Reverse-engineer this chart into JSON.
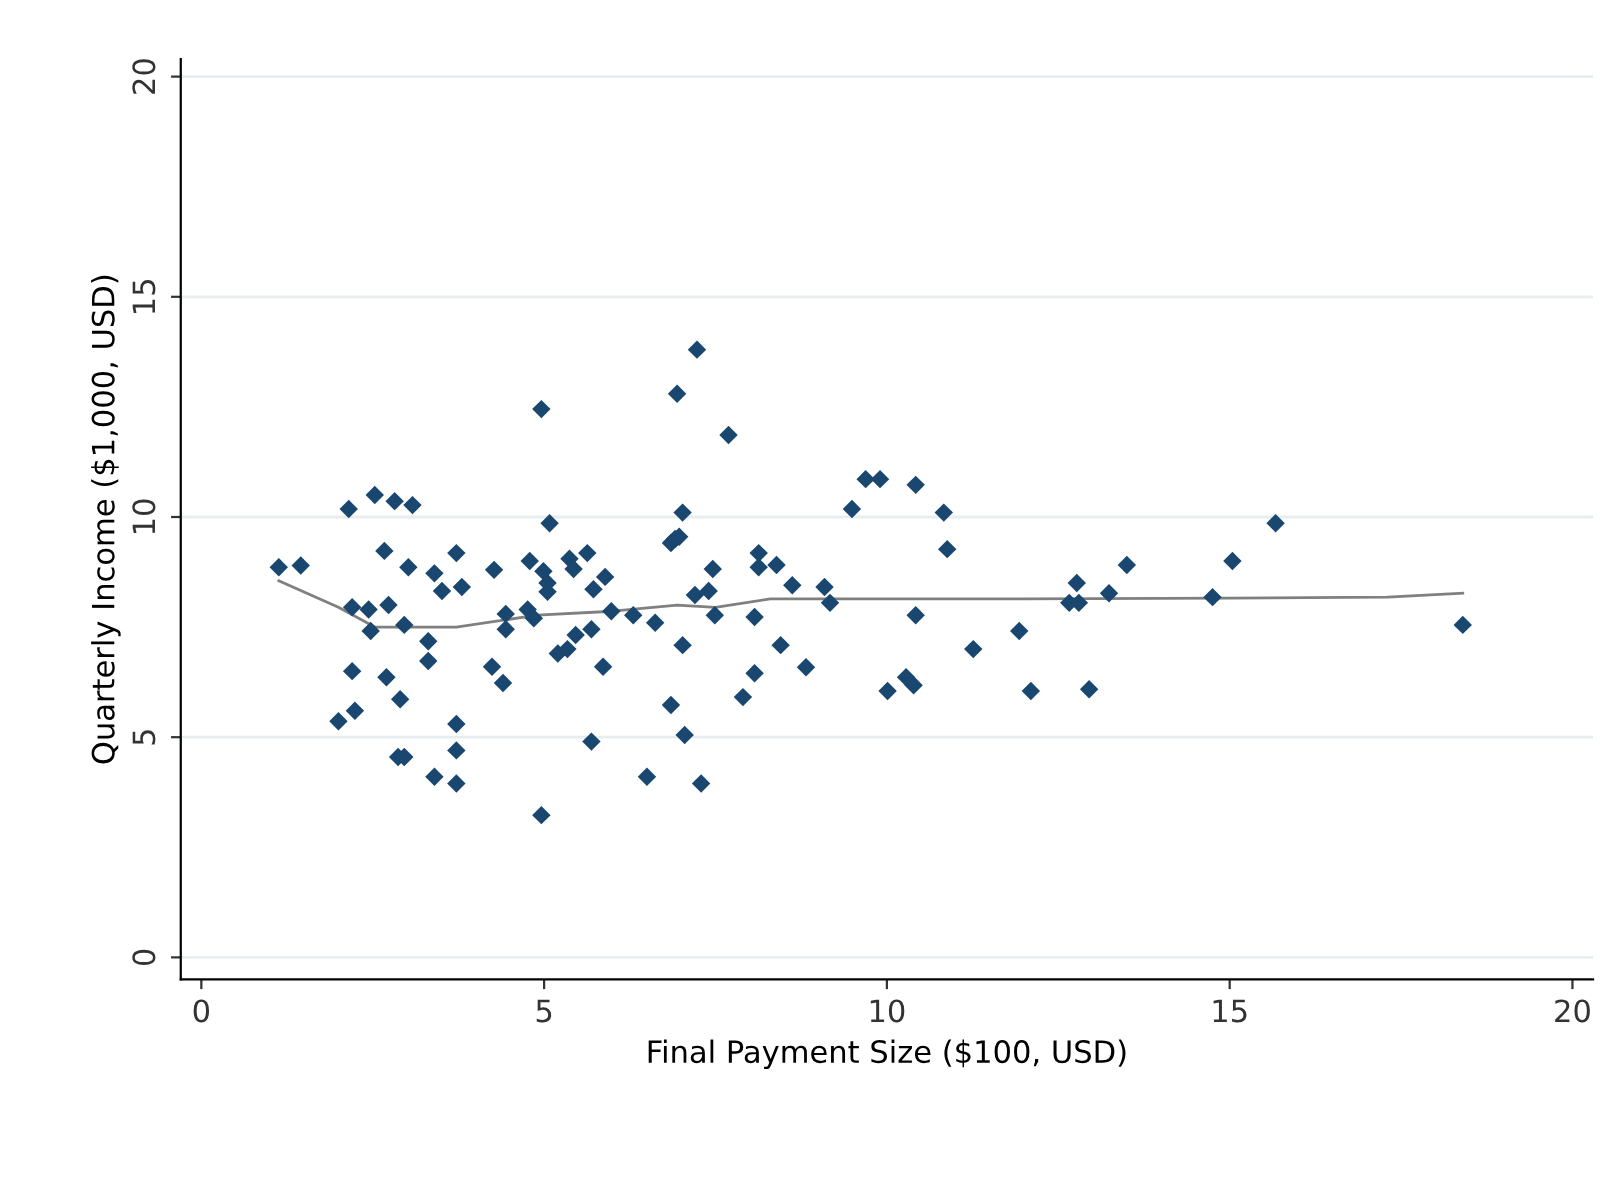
{
  "chart_data": {
    "type": "scatter",
    "xlabel": "Final Payment Size ($100, USD)",
    "ylabel": "Quarterly Income ($1,000, USD)",
    "xlim": [
      -0.3,
      20.3
    ],
    "ylim": [
      -0.5,
      20.4
    ],
    "xticks": [
      0,
      5,
      10,
      15,
      20
    ],
    "yticks": [
      0,
      5,
      10,
      15,
      20
    ],
    "grid": "y",
    "marker": "diamond",
    "series": [
      {
        "color": "#1a476f",
        "x": [
          1.13,
          1.45,
          2.0,
          2.24,
          2.15,
          2.53,
          2.82,
          3.08,
          2.67,
          3.02,
          2.2,
          2.44,
          2.73,
          2.47,
          2.96,
          2.2,
          2.7,
          2.9,
          2.87,
          2.96,
          3.4,
          3.72,
          3.72,
          3.72,
          3.31,
          3.31,
          3.4,
          3.51,
          3.72,
          3.8,
          4.27,
          4.24,
          4.4,
          4.44,
          4.44,
          4.76,
          5.08,
          4.79,
          4.99,
          5.05,
          5.05,
          4.85,
          4.96,
          4.96,
          5.37,
          5.43,
          5.63,
          5.72,
          5.46,
          5.69,
          5.2,
          5.34,
          5.86,
          5.69,
          5.89,
          5.98,
          6.3,
          6.62,
          6.5,
          6.85,
          7.05,
          7.29,
          7.02,
          6.85,
          6.91,
          6.97,
          7.02,
          6.94,
          7.23,
          7.69,
          7.2,
          7.4,
          7.46,
          7.49,
          7.9,
          8.07,
          8.07,
          8.13,
          8.13,
          8.39,
          8.62,
          8.45,
          8.82,
          9.09,
          9.17,
          9.49,
          9.69,
          9.9,
          10.42,
          10.42,
          10.01,
          10.28,
          10.39,
          10.83,
          10.88,
          11.26,
          11.93,
          12.1,
          12.66,
          12.8,
          12.77,
          12.95,
          13.24,
          13.5,
          14.75,
          15.04,
          15.67,
          18.4
        ],
        "values": [
          8.86,
          8.9,
          5.36,
          5.6,
          10.18,
          10.5,
          10.36,
          10.27,
          9.23,
          8.86,
          7.95,
          7.9,
          8.0,
          7.41,
          7.55,
          6.5,
          6.36,
          5.86,
          4.55,
          4.55,
          4.1,
          3.95,
          4.7,
          5.3,
          7.18,
          6.73,
          8.72,
          8.32,
          9.18,
          8.41,
          8.8,
          6.6,
          6.23,
          7.8,
          7.45,
          7.9,
          9.86,
          9.0,
          8.77,
          8.5,
          8.3,
          7.7,
          12.45,
          3.23,
          9.05,
          8.82,
          9.18,
          8.36,
          7.32,
          7.45,
          6.9,
          7.0,
          6.6,
          4.9,
          8.64,
          7.86,
          7.77,
          7.6,
          4.1,
          5.73,
          5.05,
          3.95,
          7.09,
          9.41,
          9.5,
          9.55,
          10.1,
          12.8,
          13.8,
          11.86,
          8.23,
          8.32,
          8.82,
          7.77,
          5.91,
          6.45,
          7.73,
          9.18,
          8.86,
          8.91,
          8.45,
          7.09,
          6.59,
          8.41,
          8.05,
          10.18,
          10.86,
          10.86,
          10.73,
          7.77,
          6.05,
          6.36,
          6.18,
          10.1,
          9.27,
          7.0,
          7.41,
          6.05,
          8.05,
          8.05,
          8.5,
          6.09,
          8.27,
          8.91,
          8.18,
          9.0,
          9.86,
          7.55
        ]
      },
      {
        "type": "line",
        "color": "#808080",
        "marker": "none",
        "x": [
          1.13,
          2.0,
          2.53,
          3.72,
          4.9,
          6.0,
          6.94,
          7.5,
          8.3,
          10.0,
          12.0,
          15.0,
          17.3,
          18.4
        ],
        "values": [
          8.55,
          7.95,
          7.5,
          7.5,
          7.77,
          7.86,
          8.0,
          7.95,
          8.14,
          8.14,
          8.14,
          8.16,
          8.18,
          8.27
        ]
      }
    ]
  }
}
